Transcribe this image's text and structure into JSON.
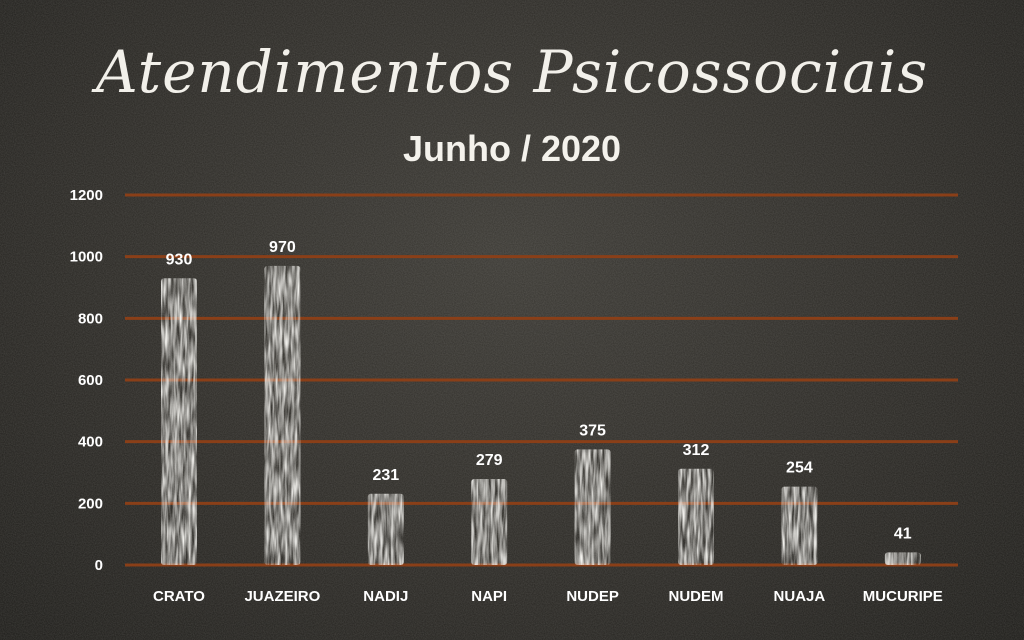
{
  "header": {
    "title": "Atendimentos Psicossociais",
    "subtitle": "Junho / 2020"
  },
  "colors": {
    "gridline": "#8a3f18",
    "bar": "#f4f3ef",
    "text": "#ffffff",
    "background": "#2c2a26"
  },
  "chart_data": {
    "type": "bar",
    "title": "Atendimentos Psicossociais",
    "subtitle": "Junho / 2020",
    "categories": [
      "CRATO",
      "JUAZEIRO",
      "NADIJ",
      "NAPI",
      "NUDEP",
      "NUDEM",
      "NUAJA",
      "MUCURIPE"
    ],
    "values": [
      930,
      970,
      231,
      279,
      375,
      312,
      254,
      41
    ],
    "data_labels": [
      "930",
      "970",
      "231",
      "279",
      "375",
      "312",
      "254",
      "41"
    ],
    "y_ticks": [
      0,
      200,
      400,
      600,
      800,
      1000,
      1200
    ],
    "ylim": [
      0,
      1200
    ],
    "xlabel": "",
    "ylabel": "",
    "grid": true,
    "legend": "none"
  }
}
